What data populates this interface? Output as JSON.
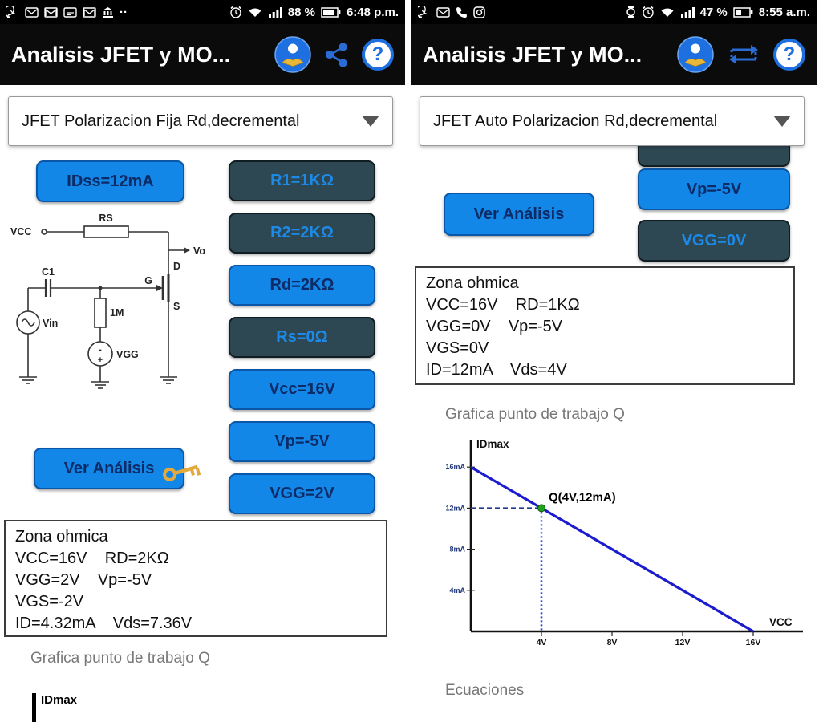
{
  "colors": {
    "accent_blue": "#1287e8",
    "dark_button_bg": "#2e4853",
    "navy_button_text": "#0d2b66",
    "load_line_blue": "#1c1ccf",
    "q_point_green": "#22a022",
    "app_bar_black": "#0b0b0b"
  },
  "left_screen": {
    "status_bar": {
      "more_glyph": "··",
      "battery_percent": "88 %",
      "time": "6:48 p.m.",
      "icons": [
        "whatsapp-icon",
        "mail-icon",
        "gmail-icon",
        "mail-icon",
        "gmail-icon",
        "bank-icon",
        "alarm-clock-icon",
        "wifi-icon",
        "signal-bars-icon",
        "battery-icon"
      ]
    },
    "app_bar": {
      "title": "Analisis JFET y MO...",
      "help_glyph": "?",
      "icons": [
        "reader-badge-icon",
        "share-icon",
        "help-icon"
      ]
    },
    "dropdown_value": "JFET Polarizacion Fija Rd,decremental",
    "idss_button_label": "IDss=12mA",
    "circuit": {
      "vcc": "VCC",
      "rs": "RS",
      "c1": "C1",
      "vin": "Vin",
      "gate_resistor": "1M",
      "vgg": "VGG",
      "gate": "G",
      "drain": "D",
      "source": "S",
      "vo": "Vo",
      "minus": "-",
      "plus": "+"
    },
    "param_buttons": [
      {
        "label": "R1=1KΩ",
        "variant": "dark"
      },
      {
        "label": "R2=2KΩ",
        "variant": "dark"
      },
      {
        "label": "Rd=2KΩ",
        "variant": "blue"
      },
      {
        "label": "Rs=0Ω",
        "variant": "dark"
      },
      {
        "label": "Vcc=16V",
        "variant": "blue"
      },
      {
        "label": "Vp=-5V",
        "variant": "blue"
      },
      {
        "label": "VGG=2V",
        "variant": "blue"
      }
    ],
    "analyze_button_label": "Ver Análisis",
    "results": [
      "Zona ohmica",
      "VCC=16V    RD=2KΩ",
      "VGG=2V    Vp=-5V",
      "VGS=-2V",
      "ID=4.32mA    Vds=7.36V"
    ],
    "graph_caption": "Grafica punto de trabajo Q",
    "graph_ylabel": "IDmax"
  },
  "right_screen": {
    "status_bar": {
      "battery_percent": "47 %",
      "time": "8:55 a.m.",
      "icons": [
        "whatsapp-icon",
        "mail-icon",
        "call-icon",
        "instagram-icon",
        "watch-icon",
        "alarm-clock-icon",
        "wifi-icon",
        "signal-bars-icon",
        "battery-icon"
      ]
    },
    "app_bar": {
      "title": "Analisis JFET y MO...",
      "help_glyph": "?",
      "icons": [
        "reader-badge-icon",
        "compare-arrows-icon",
        "help-icon"
      ]
    },
    "dropdown_value": "JFET Auto Polarizacion Rd,decremental",
    "analyze_button_label": "Ver Análisis",
    "param_buttons": [
      {
        "label": "Vp=-5V",
        "variant": "blue"
      },
      {
        "label": "VGG=0V",
        "variant": "dark"
      }
    ],
    "results": [
      "Zona ohmica",
      "VCC=16V    RD=1KΩ",
      "VGG=0V    Vp=-5V",
      "VGS=0V",
      "ID=12mA    Vds=4V"
    ],
    "graph_caption": "Grafica punto de trabajo Q",
    "equations_caption": "Ecuaciones"
  },
  "chart_data": {
    "type": "line",
    "title": "Grafica punto de trabajo Q",
    "xlabel": "VCC",
    "ylabel": "IDmax",
    "x_unit": "V",
    "y_unit": "mA",
    "xlim": [
      0,
      18
    ],
    "ylim": [
      0,
      18
    ],
    "grid": false,
    "legend": false,
    "x_ticks": [
      {
        "value": 4,
        "label": "4V"
      },
      {
        "value": 8,
        "label": "8V"
      },
      {
        "value": 12,
        "label": "12V"
      },
      {
        "value": 16,
        "label": "16V"
      }
    ],
    "y_ticks": [
      {
        "value": 16,
        "label": "16mA"
      },
      {
        "value": 12,
        "label": "12mA"
      },
      {
        "value": 8,
        "label": "8mA"
      },
      {
        "value": 4,
        "label": "4mA"
      }
    ],
    "series": [
      {
        "name": "load_line",
        "x": [
          0,
          16
        ],
        "y": [
          16,
          0
        ],
        "color": "#1c1ccf"
      }
    ],
    "q_point": {
      "x": 4,
      "y": 12,
      "label": "Q(4V,12mA)",
      "color": "#22a022"
    }
  }
}
